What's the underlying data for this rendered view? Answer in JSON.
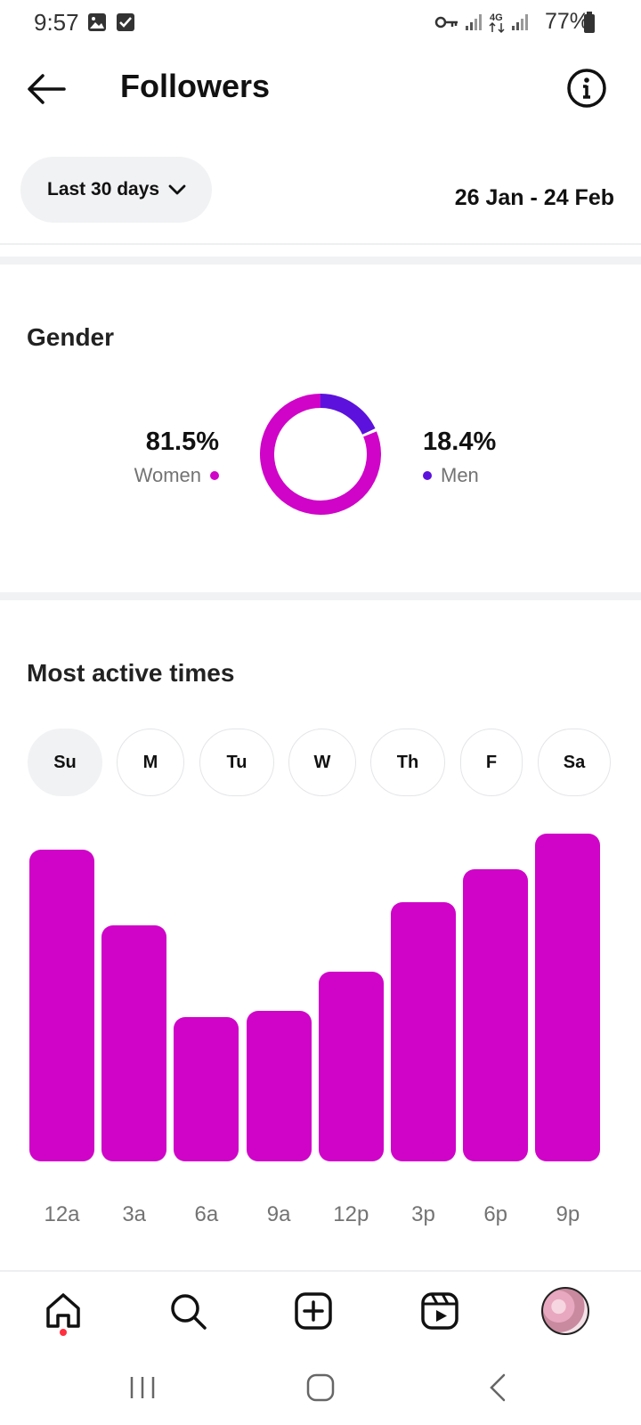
{
  "status_bar": {
    "time": "9:57",
    "battery": "77%",
    "network": "4G"
  },
  "header": {
    "title": "Followers"
  },
  "filter": {
    "range_label": "Last 30 days",
    "date_range": "26 Jan - 24 Feb"
  },
  "gender": {
    "title": "Gender",
    "women": {
      "percent": "81.5%",
      "label": "Women",
      "value": 81.5,
      "color": "#d004c8"
    },
    "men": {
      "percent": "18.4%",
      "label": "Men",
      "value": 18.4,
      "color": "#5c12dc"
    }
  },
  "active_times": {
    "title": "Most active times",
    "days": [
      "Su",
      "M",
      "Tu",
      "W",
      "Th",
      "F",
      "Sa"
    ],
    "selected_day": "Su"
  },
  "chart_data": {
    "type": "bar",
    "categories": [
      "12a",
      "3a",
      "6a",
      "9a",
      "12p",
      "3p",
      "6p",
      "9p"
    ],
    "values": [
      95,
      72,
      44,
      46,
      58,
      79,
      89,
      100
    ],
    "ylim": [
      0,
      100
    ],
    "color": "#d004c8"
  },
  "colors": {
    "accent": "#d004c8",
    "secondary": "#5c12dc",
    "notification_dot": "#ff3040"
  },
  "bottom_nav": {
    "items": [
      "home-icon",
      "search-icon",
      "create-icon",
      "reels-icon",
      "profile-avatar"
    ]
  }
}
